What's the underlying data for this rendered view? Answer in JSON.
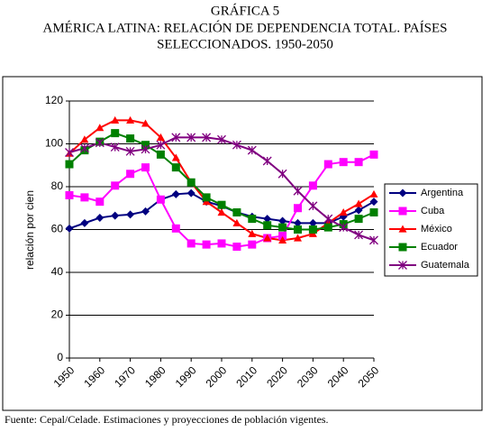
{
  "chart_data": {
    "type": "line",
    "title": "GRÁFICA 5",
    "subtitle": [
      "AMÉRICA LATINA: RELACIÓN DE DEPENDENCIA TOTAL. PAÍSES",
      "SELECCIONADOS. 1950-2050"
    ],
    "y_label": "relación por cien",
    "source": "Fuente: Cepal/Celade. Estimaciones y proyecciones de población vigentes.",
    "x": [
      1950,
      1955,
      1960,
      1965,
      1970,
      1975,
      1980,
      1985,
      1990,
      1995,
      2000,
      2005,
      2010,
      2015,
      2020,
      2025,
      2030,
      2035,
      2040,
      2045,
      2050
    ],
    "xlim": [
      1950,
      2050
    ],
    "xticks": [
      1950,
      1960,
      1970,
      1980,
      1990,
      2000,
      2010,
      2020,
      2030,
      2040,
      2050
    ],
    "ylim": [
      0,
      120
    ],
    "yticks": [
      0,
      20,
      40,
      60,
      80,
      100,
      120
    ],
    "grid": true,
    "legend": "right",
    "series": [
      {
        "name": "Argentina",
        "color": "#000080",
        "marker": "diamond",
        "values": [
          60.5,
          63,
          65.5,
          66.5,
          67,
          68.5,
          74,
          76.5,
          77,
          73,
          71,
          68,
          66,
          65,
          64,
          63,
          63,
          63,
          66,
          69,
          73
        ]
      },
      {
        "name": "Cuba",
        "color": "#ff00ff",
        "marker": "square",
        "values": [
          76,
          75,
          73,
          80.5,
          86,
          89,
          74,
          60.5,
          53.5,
          53,
          53.5,
          52,
          53,
          56,
          57,
          70,
          80.5,
          90.5,
          91.5,
          91.5,
          95
        ]
      },
      {
        "name": "México",
        "color": "#ff0000",
        "marker": "triangle",
        "values": [
          95.5,
          102,
          107.5,
          111,
          111,
          109.5,
          103,
          93.5,
          82,
          73,
          68,
          63,
          58,
          56,
          55,
          56,
          58,
          63,
          68,
          72,
          76.5
        ]
      },
      {
        "name": "Ecuador",
        "color": "#008000",
        "marker": "square",
        "values": [
          90.5,
          97,
          101,
          105,
          102.5,
          99.5,
          95,
          89,
          82,
          75,
          71.5,
          68,
          65,
          62,
          61,
          60,
          60,
          61,
          62.5,
          65,
          68
        ]
      },
      {
        "name": "Guatemala",
        "color": "#800080",
        "marker": "asterisk",
        "values": [
          96,
          98,
          100.5,
          98.5,
          96.5,
          97.5,
          99.5,
          103,
          103,
          103,
          102,
          99.5,
          97,
          92,
          86,
          78,
          71,
          65,
          61,
          57.5,
          55
        ]
      }
    ]
  }
}
